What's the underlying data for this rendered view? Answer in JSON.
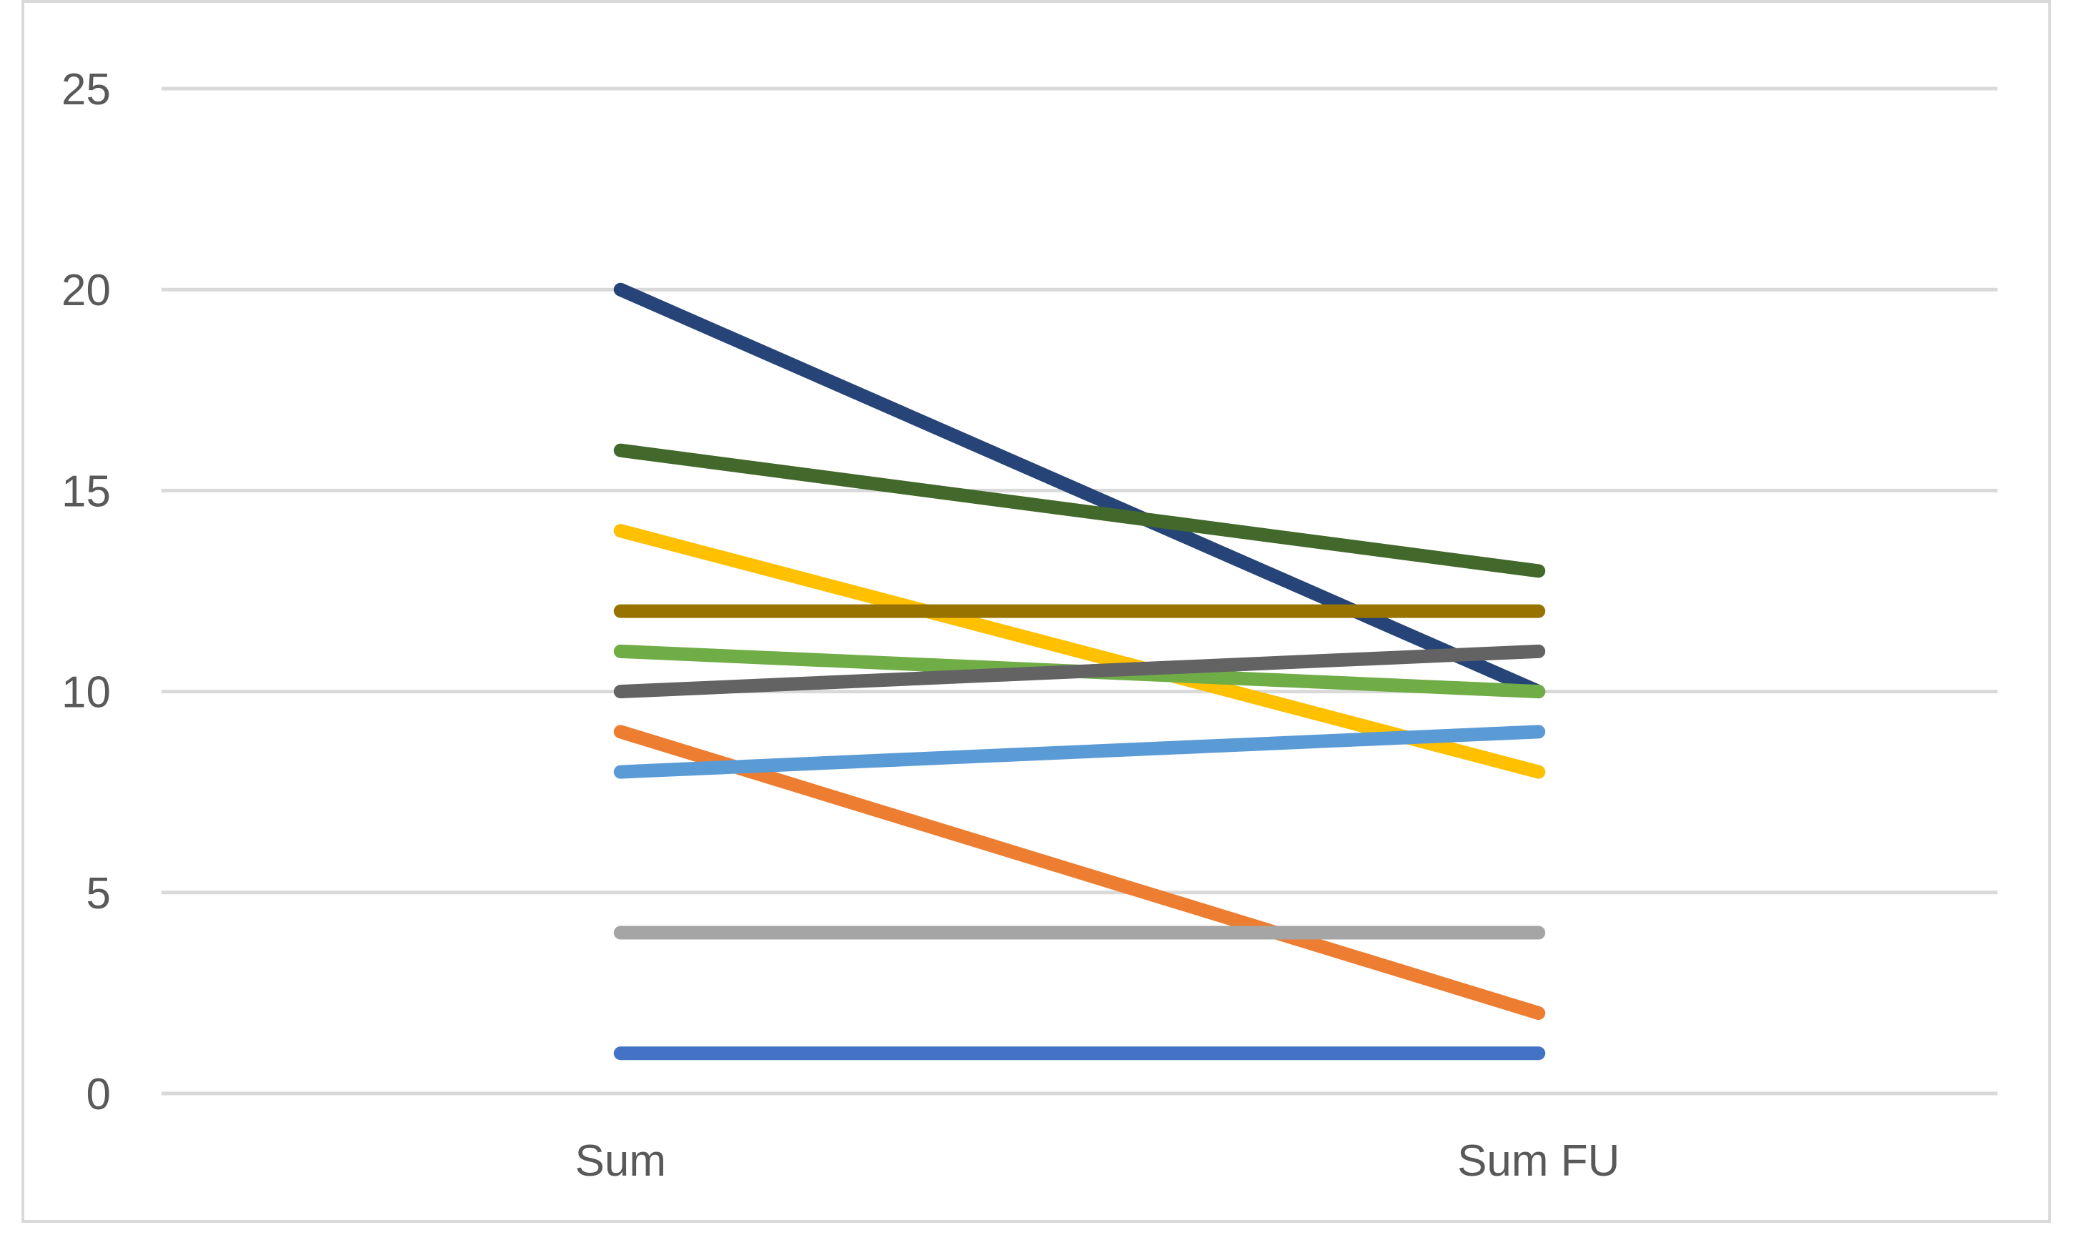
{
  "chart_data": {
    "type": "line",
    "title": "",
    "xlabel": "",
    "ylabel": "",
    "categories": [
      "Sum",
      "Sum FU"
    ],
    "ylim": [
      0,
      25
    ],
    "yticks": [
      "0",
      "5",
      "10",
      "15",
      "20",
      "25"
    ],
    "grid": true,
    "legend": "none",
    "series": [
      {
        "values": [
          20,
          10
        ],
        "color": "#264478"
      },
      {
        "values": [
          16,
          13
        ],
        "color": "#43682b"
      },
      {
        "values": [
          14,
          8
        ],
        "color": "#ffc000"
      },
      {
        "values": [
          12,
          12
        ],
        "color": "#997300"
      },
      {
        "values": [
          11,
          10
        ],
        "color": "#70ad47"
      },
      {
        "values": [
          10,
          11
        ],
        "color": "#636363"
      },
      {
        "values": [
          9,
          2
        ],
        "color": "#ed7d31"
      },
      {
        "values": [
          8,
          9
        ],
        "color": "#5b9bd5"
      },
      {
        "values": [
          4,
          4
        ],
        "color": "#a5a5a5"
      },
      {
        "values": [
          1,
          1
        ],
        "color": "#4472c4"
      }
    ],
    "gridline_color": "#d9d9d9",
    "tick_label_color": "#595959"
  }
}
